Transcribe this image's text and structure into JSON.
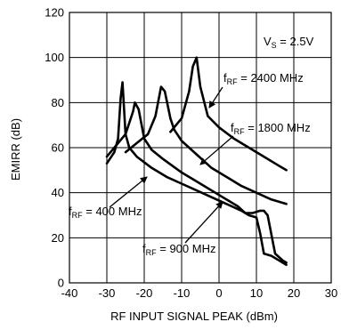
{
  "chart_data": {
    "type": "line",
    "xlabel": "RF INPUT SIGNAL PEAK (dBm)",
    "ylabel": "EMIRR (dB)",
    "xlim": [
      -40,
      30
    ],
    "ylim": [
      0,
      120
    ],
    "x_ticks": [
      "-40",
      "-30",
      "-20",
      "-10",
      "0",
      "10",
      "20",
      "30"
    ],
    "y_ticks": [
      "0",
      "20",
      "40",
      "60",
      "80",
      "100",
      "120"
    ],
    "grid": true,
    "legend": "none",
    "condition": {
      "main": "V",
      "sub": "S",
      "rest": " = 2.5V"
    },
    "series": [
      {
        "name": "400 MHz",
        "x": [
          -30,
          -28,
          -27,
          -26.3,
          -25.8,
          -25,
          -24,
          -22,
          -18,
          -14,
          -10,
          -6,
          -2,
          2,
          6,
          8,
          10,
          11,
          12,
          14,
          16,
          18
        ],
        "y": [
          53,
          58,
          64,
          82,
          89,
          66,
          60,
          56,
          51,
          47,
          44,
          41,
          38,
          35,
          32,
          30,
          29,
          22,
          13,
          12,
          10,
          8
        ]
      },
      {
        "name": "900 MHz",
        "x": [
          -30,
          -28,
          -25,
          -23,
          -22.5,
          -21.5,
          -20,
          -18,
          -15,
          -10,
          -5,
          0,
          5,
          7,
          9,
          11,
          12,
          13,
          15,
          17,
          18
        ],
        "y": [
          56,
          60,
          66,
          76,
          80,
          77,
          64,
          59,
          55,
          49,
          44,
          39,
          34,
          31,
          31,
          32,
          32,
          30,
          13,
          10,
          9
        ]
      },
      {
        "name": "1800 MHz",
        "x": [
          -25,
          -22,
          -19,
          -17,
          -15.5,
          -14.5,
          -13,
          -12,
          -10,
          -6,
          -2,
          2,
          6,
          10,
          14,
          18
        ],
        "y": [
          58,
          62,
          66,
          74,
          87,
          85,
          73,
          68,
          63,
          57,
          51,
          47,
          43,
          40,
          37,
          35
        ]
      },
      {
        "name": "2400 MHz",
        "x": [
          -13,
          -10,
          -8,
          -7,
          -6,
          -5,
          -3,
          0,
          4,
          8,
          12,
          16,
          18
        ],
        "y": [
          67,
          73,
          85,
          96,
          100,
          87,
          74,
          69,
          64,
          60,
          56,
          52,
          50
        ]
      }
    ],
    "annotations": [
      {
        "series": "2400 MHz",
        "main": "f",
        "sub": "RF",
        "rest": " = 2400 MHz"
      },
      {
        "series": "1800 MHz",
        "main": "f",
        "sub": "RF",
        "rest": " = 1800 MHz"
      },
      {
        "series": "400 MHz",
        "main": "f",
        "sub": "RF",
        "rest": " = 400 MHz"
      },
      {
        "series": "900 MHz",
        "main": "f",
        "sub": "RF",
        "rest": " = 900 MHz"
      }
    ],
    "colors": {
      "line": "#000000",
      "grid": "#000000",
      "background": "#ffffff"
    }
  }
}
